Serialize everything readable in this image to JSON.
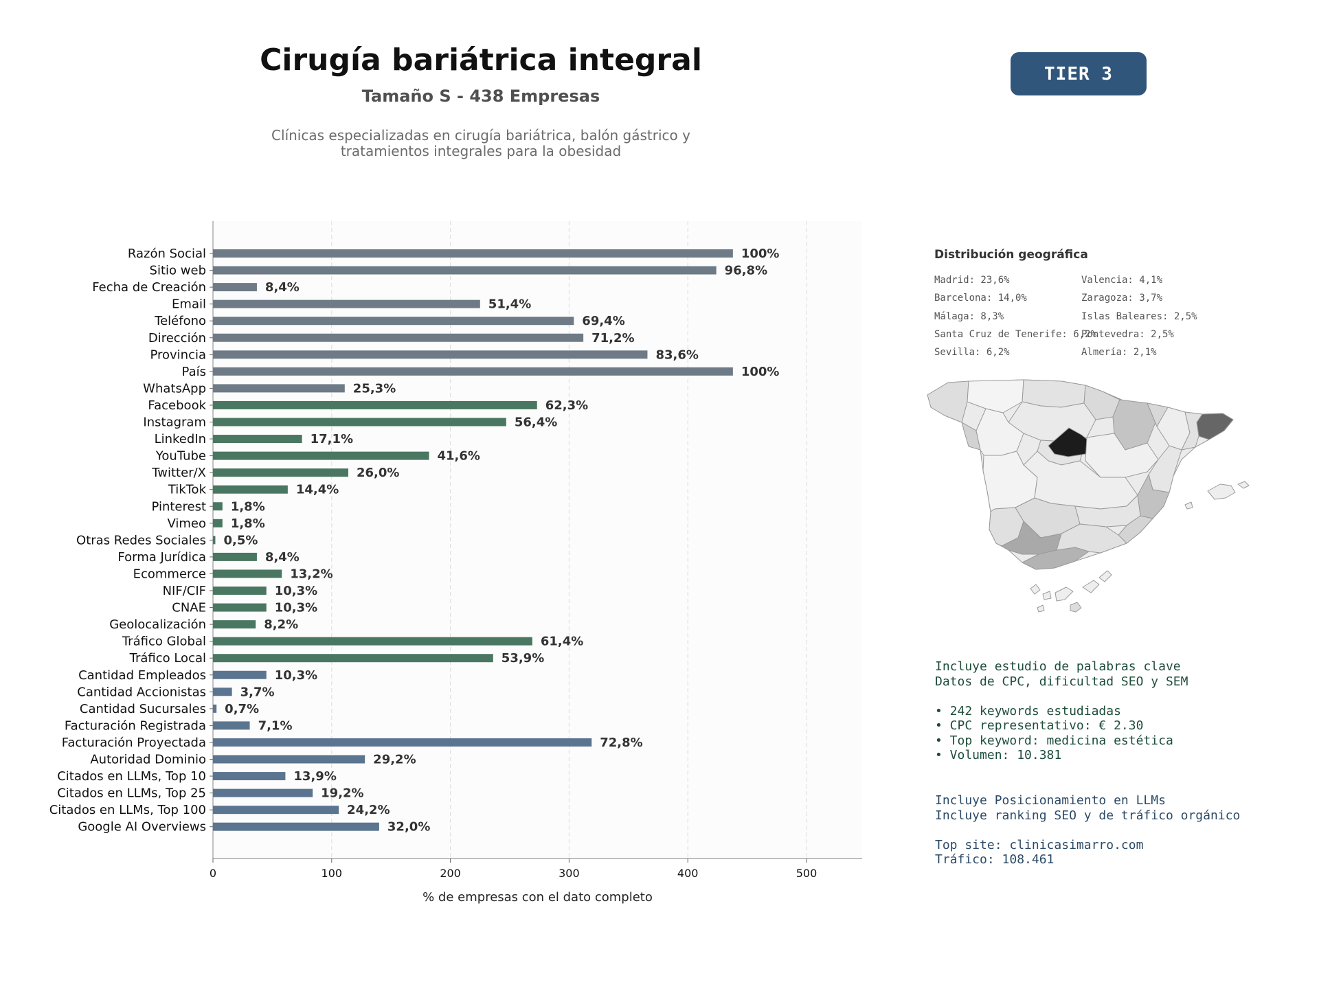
{
  "header": {
    "title": "Cirugía bariátrica integral",
    "subtitle": "Tamaño S - 438 Empresas",
    "description": [
      "Clínicas especializadas en cirugía bariátrica, balón gástrico y",
      "tratamientos integrales para la obesidad"
    ],
    "tier": "TIER 3"
  },
  "chart_data": {
    "type": "bar",
    "orientation": "horizontal",
    "xlabel": "% de empresas con el dato completo",
    "xlim": [
      0,
      550
    ],
    "xticks": [
      0,
      100,
      200,
      300,
      400,
      500
    ],
    "grid": true,
    "colors": {
      "general": "#6e7a86",
      "digital": "#4a7761",
      "business": "#5b7590"
    },
    "categories": [
      "Razón Social",
      "Sitio web",
      "Fecha de Creación",
      "Email",
      "Teléfono",
      "Dirección",
      "Provincia",
      "País",
      "WhatsApp",
      "Facebook",
      "Instagram",
      "LinkedIn",
      "YouTube",
      "Twitter/X",
      "TikTok",
      "Pinterest",
      "Vimeo",
      "Otras Redes Sociales",
      "Forma Jurídica",
      "Ecommerce",
      "NIF/CIF",
      "CNAE",
      "Geolocalización",
      "Tráfico Global",
      "Tráfico Local",
      "Cantidad Empleados",
      "Cantidad Accionistas",
      "Cantidad Sucursales",
      "Facturación Registrada",
      "Facturación Proyectada",
      "Autoridad Dominio",
      "Citados en LLMs, Top 10",
      "Citados en LLMs, Top 25",
      "Citados en LLMs, Top 100",
      "Google AI Overviews"
    ],
    "values": [
      438,
      424,
      37,
      225,
      304,
      312,
      366,
      438,
      111,
      273,
      247,
      75,
      182,
      114,
      63,
      8,
      8,
      2,
      37,
      58,
      45,
      45,
      36,
      269,
      236,
      45,
      16,
      3,
      31,
      319,
      128,
      61,
      84,
      106,
      140
    ],
    "labels": [
      "100%",
      "96,8%",
      "8,4%",
      "51,4%",
      "69,4%",
      "71,2%",
      "83,6%",
      "100%",
      "25,3%",
      "62,3%",
      "56,4%",
      "17,1%",
      "41,6%",
      "26,0%",
      "14,4%",
      "1,8%",
      "1,8%",
      "0,5%",
      "8,4%",
      "13,2%",
      "10,3%",
      "10,3%",
      "8,2%",
      "61,4%",
      "53,9%",
      "10,3%",
      "3,7%",
      "0,7%",
      "7,1%",
      "72,8%",
      "29,2%",
      "13,9%",
      "19,2%",
      "24,2%",
      "32,0%"
    ],
    "groups": [
      "general",
      "general",
      "general",
      "general",
      "general",
      "general",
      "general",
      "general",
      "general",
      "digital",
      "digital",
      "digital",
      "digital",
      "digital",
      "digital",
      "digital",
      "digital",
      "digital",
      "digital",
      "digital",
      "digital",
      "digital",
      "digital",
      "digital",
      "digital",
      "business",
      "business",
      "business",
      "business",
      "business",
      "business",
      "business",
      "business",
      "business",
      "business"
    ]
  },
  "geo": {
    "title": "Distribución geográfica",
    "left": [
      "Madrid: 23,6%",
      "Barcelona: 14,0%",
      "Málaga: 8,3%",
      "Santa Cruz de Tenerife: 6,2%",
      "Sevilla: 6,2%"
    ],
    "right": [
      "Valencia: 4,1%",
      "Zaragoza: 3,7%",
      "Islas Baleares: 2,5%",
      "Pontevedra: 2,5%",
      "Almería: 2,1%"
    ]
  },
  "seo_info": [
    "Incluye estudio de palabras clave",
    "Datos de CPC, dificultad SEO y SEM",
    "",
    "• 242 keywords estudiadas",
    "• CPC representativo: € 2.30",
    "• Top keyword: medicina estética",
    "• Volumen: 10.381"
  ],
  "llm_info": [
    "Incluye Posicionamiento en LLMs",
    "Incluye ranking SEO y de tráfico orgánico",
    "",
    "Top site: clinicasimarro.com",
    "Tráfico: 108.461"
  ]
}
